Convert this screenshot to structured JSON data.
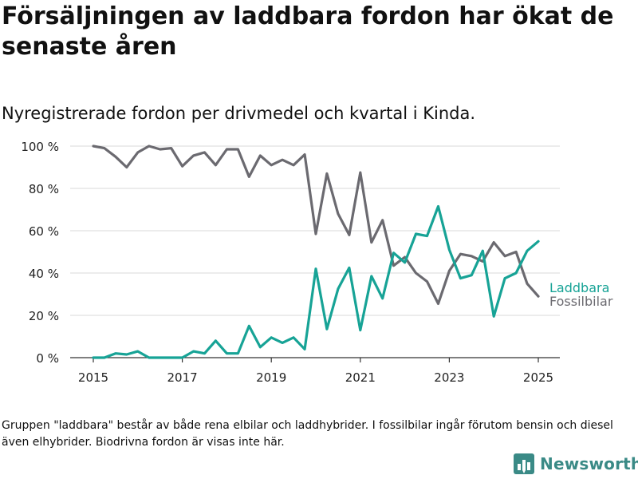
{
  "title": "Försäljningen av laddbara fordon har ökat de senaste åren",
  "subtitle": "Nyregistrerade fordon per drivmedel och kvartal i Kinda.",
  "footnote": "Gruppen \"laddbara\" består av både rena elbilar och laddhybrider. I fossilbilar ingår förutom bensin och diesel även elhybrider. Biodrivna fordon är visas inte här.",
  "brand": {
    "name": "Newsworthy",
    "icon": "bar-chart-logo-icon",
    "color": "#3a8a86"
  },
  "chart_data": {
    "type": "line",
    "x_unit": "year (quarterly, decimal)",
    "xlim": [
      2014.7,
      2025.5
    ],
    "ylim": [
      0,
      100
    ],
    "x_ticks": [
      2015,
      2017,
      2019,
      2021,
      2023,
      2025
    ],
    "x_tick_labels": [
      "2015",
      "2017",
      "2019",
      "2021",
      "2023",
      "2025"
    ],
    "y_ticks": [
      0,
      20,
      40,
      60,
      80,
      100
    ],
    "y_tick_labels": [
      "0 %",
      "20 %",
      "40 %",
      "60 %",
      "80 %",
      "100 %"
    ],
    "grid": "horizontal",
    "legend": "end-labels",
    "x": [
      2015,
      2015.25,
      2015.5,
      2015.75,
      2016,
      2016.25,
      2016.5,
      2016.75,
      2017,
      2017.25,
      2017.5,
      2017.75,
      2018,
      2018.25,
      2018.5,
      2018.75,
      2019,
      2019.25,
      2019.5,
      2019.75,
      2020,
      2020.25,
      2020.5,
      2020.75,
      2021,
      2021.25,
      2021.5,
      2021.75,
      2022,
      2022.25,
      2022.5,
      2022.75,
      2023,
      2023.25,
      2023.5,
      2023.75,
      2024,
      2024.25,
      2024.5,
      2024.75,
      2025
    ],
    "series": [
      {
        "name": "Fossilbilar",
        "color": "#6b6a70",
        "values": [
          100,
          99,
          95,
          90,
          97,
          100,
          98.5,
          99,
          90.5,
          95.5,
          97,
          91,
          98.5,
          98.5,
          85.5,
          95.5,
          91,
          93.5,
          91,
          96,
          58.5,
          87,
          68,
          58,
          87.5,
          54.5,
          65,
          43.5,
          47.5,
          40,
          36,
          25.5,
          41,
          49,
          48,
          45.5,
          54.5,
          48,
          50,
          35,
          29
        ]
      },
      {
        "name": "Laddbara",
        "color": "#17a396",
        "values": [
          0,
          0,
          2,
          1.5,
          3,
          0,
          0,
          0,
          0,
          3,
          2,
          8,
          2,
          2,
          15,
          5,
          9.5,
          7,
          9.5,
          4,
          42,
          13.5,
          32.5,
          42.5,
          13,
          38.5,
          28,
          49.5,
          45,
          58.5,
          57.5,
          71.5,
          51,
          37.5,
          39,
          50.5,
          19.5,
          37.5,
          40,
          50.5,
          55
        ]
      }
    ]
  }
}
